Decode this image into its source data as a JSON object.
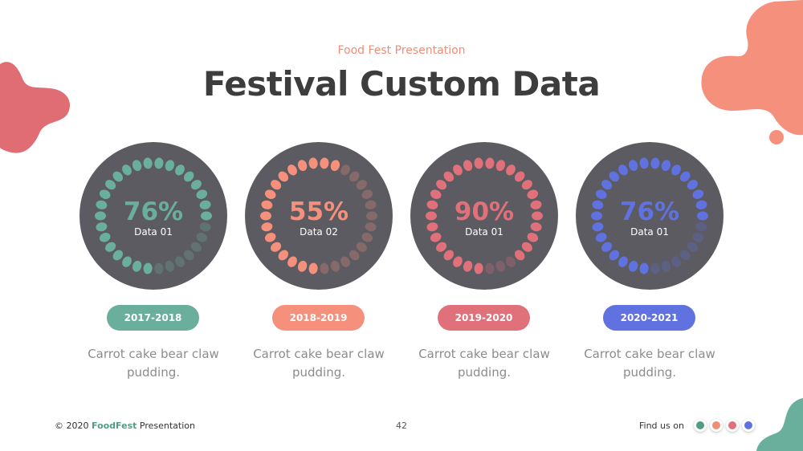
{
  "header": {
    "subtitle": "Food Fest Presentation",
    "title": "Festival Custom Data"
  },
  "cards": [
    {
      "percent_label": "76%",
      "percent": 76,
      "data_label": "Data 01",
      "period": "2017-2018",
      "description_line1": "Carrot cake bear claw",
      "description_line2": "pudding.",
      "accent": "#6aaf9b"
    },
    {
      "percent_label": "55%",
      "percent": 55,
      "data_label": "Data 02",
      "period": "2018-2019",
      "description_line1": "Carrot cake bear claw",
      "description_line2": "pudding.",
      "accent": "#f5907c"
    },
    {
      "percent_label": "90%",
      "percent": 90,
      "data_label": "Data 01",
      "period": "2019-2020",
      "description_line1": "Carrot cake bear claw",
      "description_line2": "pudding.",
      "accent": "#e0707a"
    },
    {
      "percent_label": "76%",
      "percent": 76,
      "data_label": "Data 01",
      "period": "2020-2021",
      "description_line1": "Carrot cake bear claw",
      "description_line2": "pudding.",
      "accent": "#5f72e0"
    }
  ],
  "footer": {
    "copyright": "© 2020",
    "brand": "FoodFest",
    "suffix": "Presentation",
    "page_number": "42",
    "find_label": "Find  us on",
    "social_icons": [
      {
        "icon": "facebook-icon",
        "color": "#4f9e83"
      },
      {
        "icon": "instagram-icon",
        "color": "#f08d77"
      },
      {
        "icon": "twitter-icon",
        "color": "#e0707a"
      },
      {
        "icon": "youtube-icon",
        "color": "#5f72e0"
      }
    ]
  },
  "colors": {
    "circle_bg": "#5c5b62",
    "title": "#3d3d3d",
    "subtitle": "#f08d77"
  }
}
